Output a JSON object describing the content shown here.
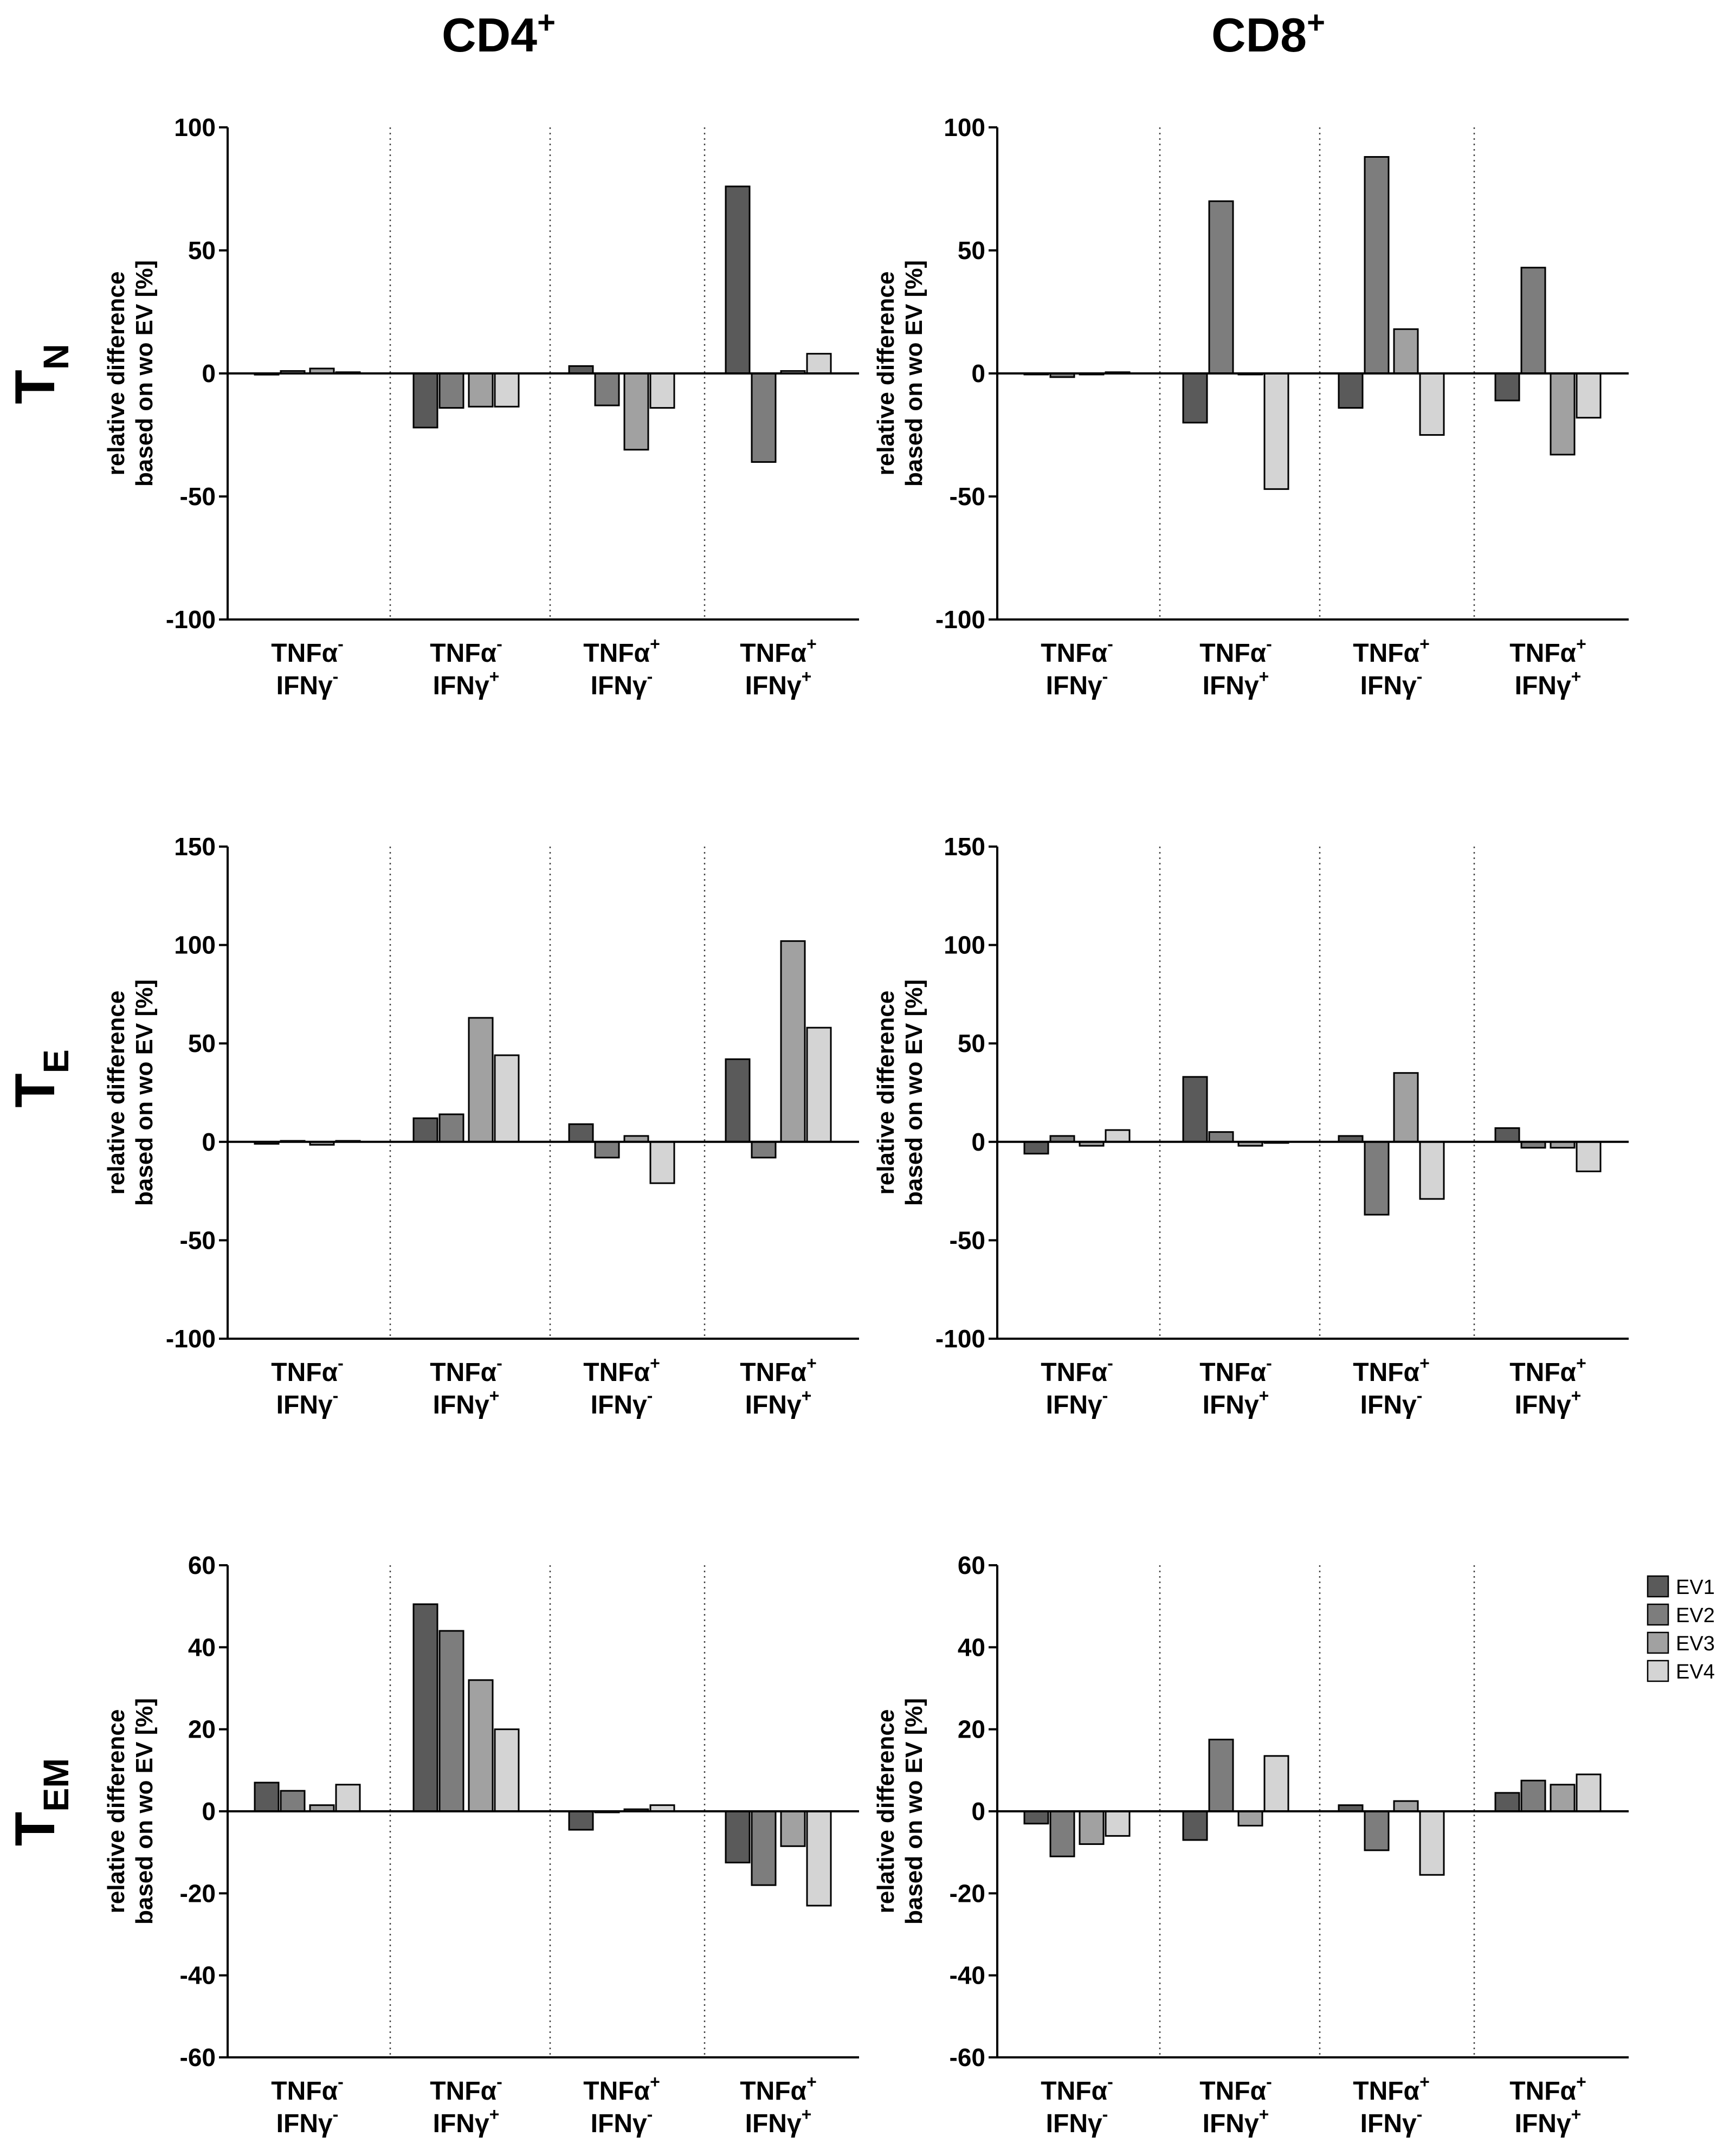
{
  "column_titles": [
    {
      "base": "CD4",
      "sup": "+"
    },
    {
      "base": "CD8",
      "sup": "+"
    }
  ],
  "row_labels": [
    {
      "base": "T",
      "sub": "N"
    },
    {
      "base": "T",
      "sub": "E"
    },
    {
      "base": "T",
      "sub": "EM"
    }
  ],
  "y_label_lines": [
    "relative difference",
    "based on wo EV [%]"
  ],
  "categories": [
    {
      "l1": "TNFα",
      "s1": "-",
      "l2": "IFNγ",
      "s2": "-"
    },
    {
      "l1": "TNFα",
      "s1": "-",
      "l2": "IFNγ",
      "s2": "+"
    },
    {
      "l1": "TNFα",
      "s1": "+",
      "l2": "IFNγ",
      "s2": "-"
    },
    {
      "l1": "TNFα",
      "s1": "+",
      "l2": "IFNγ",
      "s2": "+"
    }
  ],
  "legend": [
    "EV1",
    "EV2",
    "EV3",
    "EV4"
  ],
  "colors": {
    "EV1": "#5a5a5a",
    "EV2": "#7d7d7d",
    "EV3": "#a1a1a1",
    "EV4": "#d4d4d4"
  },
  "chart_data": [
    {
      "id": "cd4-tn",
      "type": "bar",
      "column": "CD4+",
      "row": "TN",
      "ylim": [
        -100,
        100
      ],
      "ticks": [
        100,
        50,
        0,
        -50,
        -100
      ],
      "categories": [
        "TNFα- IFNγ-",
        "TNFα- IFNγ+",
        "TNFα+ IFNγ-",
        "TNFα+ IFNγ+"
      ],
      "series": [
        {
          "name": "EV1",
          "values": [
            -0.5,
            -22,
            3,
            76
          ]
        },
        {
          "name": "EV2",
          "values": [
            1,
            -14,
            -13,
            -36
          ]
        },
        {
          "name": "EV3",
          "values": [
            2,
            -13.5,
            -31,
            1
          ]
        },
        {
          "name": "EV4",
          "values": [
            0.5,
            -13.5,
            -14,
            8
          ]
        }
      ]
    },
    {
      "id": "cd8-tn",
      "type": "bar",
      "column": "CD8+",
      "row": "TN",
      "ylim": [
        -100,
        100
      ],
      "ticks": [
        100,
        50,
        0,
        -50,
        -100
      ],
      "categories": [
        "TNFα- IFNγ-",
        "TNFα- IFNγ+",
        "TNFα+ IFNγ-",
        "TNFα+ IFNγ+"
      ],
      "series": [
        {
          "name": "EV1",
          "values": [
            0,
            -20,
            -14,
            -11
          ]
        },
        {
          "name": "EV2",
          "values": [
            -1.5,
            70,
            88,
            43
          ]
        },
        {
          "name": "EV3",
          "values": [
            0,
            0,
            18,
            -33
          ]
        },
        {
          "name": "EV4",
          "values": [
            0.5,
            -47,
            -25,
            -18
          ]
        }
      ]
    },
    {
      "id": "cd4-te",
      "type": "bar",
      "column": "CD4+",
      "row": "TE",
      "ylim": [
        -100,
        150
      ],
      "ticks": [
        150,
        100,
        50,
        0,
        -50,
        -100
      ],
      "categories": [
        "TNFα- IFNγ-",
        "TNFα- IFNγ+",
        "TNFα+ IFNγ-",
        "TNFα+ IFNγ+"
      ],
      "series": [
        {
          "name": "EV1",
          "values": [
            -1,
            12,
            9,
            42
          ]
        },
        {
          "name": "EV2",
          "values": [
            0.5,
            14,
            -8,
            -8
          ]
        },
        {
          "name": "EV3",
          "values": [
            -1.5,
            63,
            3,
            102
          ]
        },
        {
          "name": "EV4",
          "values": [
            0.5,
            44,
            -21,
            58
          ]
        }
      ]
    },
    {
      "id": "cd8-te",
      "type": "bar",
      "column": "CD8+",
      "row": "TE",
      "ylim": [
        -100,
        150
      ],
      "ticks": [
        150,
        100,
        50,
        0,
        -50,
        -100
      ],
      "categories": [
        "TNFα- IFNγ-",
        "TNFα- IFNγ+",
        "TNFα+ IFNγ-",
        "TNFα+ IFNγ+"
      ],
      "series": [
        {
          "name": "EV1",
          "values": [
            -6,
            33,
            3,
            7
          ]
        },
        {
          "name": "EV2",
          "values": [
            3,
            5,
            -37,
            -3
          ]
        },
        {
          "name": "EV3",
          "values": [
            -2,
            -2,
            35,
            -3
          ]
        },
        {
          "name": "EV4",
          "values": [
            6,
            0,
            -29,
            -15
          ]
        }
      ]
    },
    {
      "id": "cd4-tem",
      "type": "bar",
      "column": "CD4+",
      "row": "TEM",
      "ylim": [
        -60,
        60
      ],
      "ticks": [
        60,
        40,
        20,
        0,
        -20,
        -40,
        -60
      ],
      "categories": [
        "TNFα- IFNγ-",
        "TNFα- IFNγ+",
        "TNFα+ IFNγ-",
        "TNFα+ IFNγ+"
      ],
      "series": [
        {
          "name": "EV1",
          "values": [
            7,
            50.5,
            -4.5,
            -12.5
          ]
        },
        {
          "name": "EV2",
          "values": [
            5,
            44,
            0,
            -18
          ]
        },
        {
          "name": "EV3",
          "values": [
            1.5,
            32,
            0.5,
            -8.5
          ]
        },
        {
          "name": "EV4",
          "values": [
            6.5,
            20,
            1.5,
            -23
          ]
        }
      ]
    },
    {
      "id": "cd8-tem",
      "type": "bar",
      "column": "CD8+",
      "row": "TEM",
      "ylim": [
        -60,
        60
      ],
      "ticks": [
        60,
        40,
        20,
        0,
        -20,
        -40,
        -60
      ],
      "categories": [
        "TNFα- IFNγ-",
        "TNFα- IFNγ+",
        "TNFα+ IFNγ-",
        "TNFα+ IFNγ+"
      ],
      "series": [
        {
          "name": "EV1",
          "values": [
            -3,
            -7,
            1.5,
            4.5
          ]
        },
        {
          "name": "EV2",
          "values": [
            -11,
            17.5,
            -9.5,
            7.5
          ]
        },
        {
          "name": "EV3",
          "values": [
            -8,
            -3.5,
            2.5,
            6.5
          ]
        },
        {
          "name": "EV4",
          "values": [
            -6,
            13.5,
            -15.5,
            9
          ]
        }
      ]
    }
  ]
}
